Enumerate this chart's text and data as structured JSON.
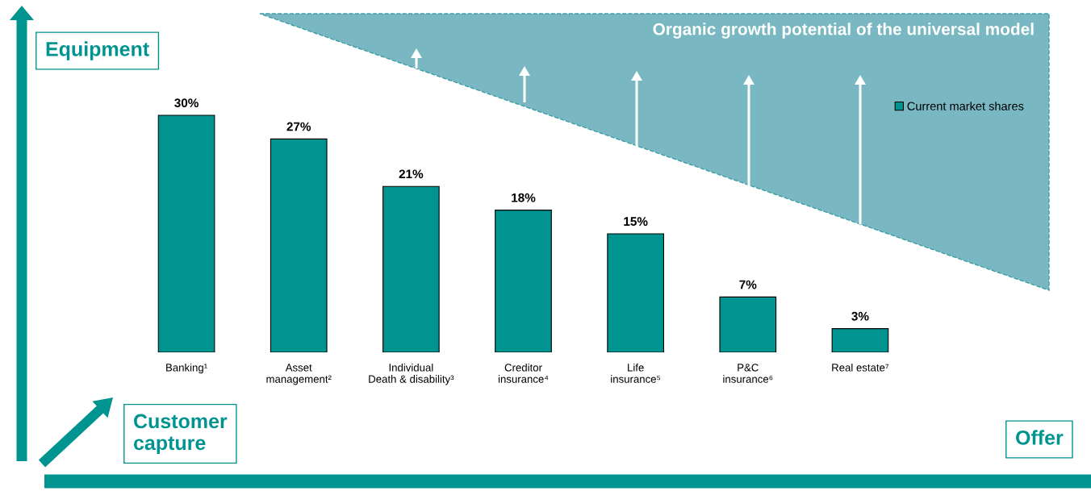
{
  "chart_data": {
    "type": "bar",
    "title": "Organic growth potential of the universal model",
    "categories": [
      "Banking¹",
      "Asset\nmanagement²",
      "Individual\nDeath & disability³",
      "Creditor\ninsurance⁴",
      "Life\ninsurance⁵",
      "P&C\ninsurance⁶",
      "Real estate⁷"
    ],
    "series": [
      {
        "name": "Current market shares",
        "color": "#009490",
        "values": [
          30,
          27,
          21,
          18,
          15,
          7,
          3
        ],
        "value_labels": [
          "30%",
          "27%",
          "21%",
          "18%",
          "15%",
          "7%",
          "3%"
        ]
      }
    ],
    "annotations": [
      "Equipment",
      "Customer\ncapture",
      "Offer"
    ],
    "legend": "top right",
    "tick_labels": "x",
    "grid": false
  }
}
